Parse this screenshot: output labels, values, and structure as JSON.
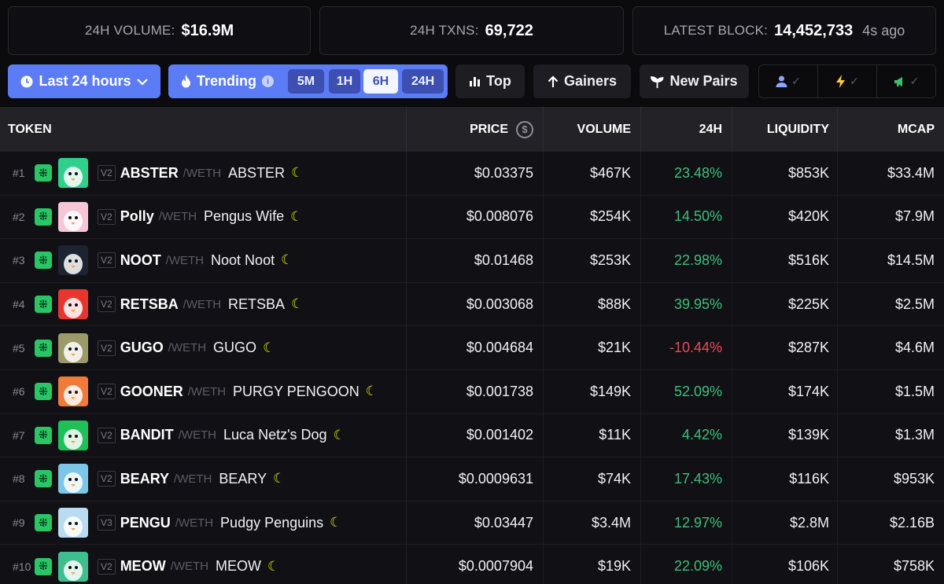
{
  "stats": {
    "volume_label": "24H VOLUME:",
    "volume_value": "$16.9M",
    "txns_label": "24H TXNS:",
    "txns_value": "69,722",
    "block_label": "LATEST BLOCK:",
    "block_value": "14,452,733",
    "block_age": "4s ago"
  },
  "toolbar": {
    "period_label": "Last 24 hours",
    "trending_label": "Trending",
    "timeframes": [
      "5M",
      "1H",
      "6H",
      "24H"
    ],
    "active_timeframe": "6H",
    "top_label": "Top",
    "gainers_label": "Gainers",
    "new_pairs_label": "New Pairs"
  },
  "table": {
    "headers": {
      "token": "TOKEN",
      "price": "PRICE",
      "volume": "VOLUME",
      "change": "24H",
      "liquidity": "LIQUIDITY",
      "mcap": "MCAP"
    },
    "quote_prefix": "/",
    "rows": [
      {
        "rank": "#1",
        "ver": "V2",
        "symbol": "ABSTER",
        "quote": "WETH",
        "name": "ABSTER",
        "price": "$0.03375",
        "volume": "$467K",
        "change": "23.48%",
        "dir": "pos",
        "liquidity": "$853K",
        "mcap": "$33.4M",
        "avatar_color": "#2fd08a"
      },
      {
        "rank": "#2",
        "ver": "V2",
        "symbol": "Polly",
        "quote": "WETH",
        "name": "Pengus Wife",
        "price": "$0.008076",
        "volume": "$254K",
        "change": "14.50%",
        "dir": "pos",
        "liquidity": "$420K",
        "mcap": "$7.9M",
        "avatar_color": "#f6c6d6"
      },
      {
        "rank": "#3",
        "ver": "V2",
        "symbol": "NOOT",
        "quote": "WETH",
        "name": "Noot Noot",
        "price": "$0.01468",
        "volume": "$253K",
        "change": "22.98%",
        "dir": "pos",
        "liquidity": "$516K",
        "mcap": "$14.5M",
        "avatar_color": "#1c2333"
      },
      {
        "rank": "#4",
        "ver": "V2",
        "symbol": "RETSBA",
        "quote": "WETH",
        "name": "RETSBA",
        "price": "$0.003068",
        "volume": "$88K",
        "change": "39.95%",
        "dir": "pos",
        "liquidity": "$225K",
        "mcap": "$2.5M",
        "avatar_color": "#e8352e"
      },
      {
        "rank": "#5",
        "ver": "V2",
        "symbol": "GUGO",
        "quote": "WETH",
        "name": "GUGO",
        "price": "$0.004684",
        "volume": "$21K",
        "change": "-10.44%",
        "dir": "neg",
        "liquidity": "$287K",
        "mcap": "$4.6M",
        "avatar_color": "#9c9a6a"
      },
      {
        "rank": "#6",
        "ver": "V2",
        "symbol": "GOONER",
        "quote": "WETH",
        "name": "PURGY PENGOON",
        "price": "$0.001738",
        "volume": "$149K",
        "change": "52.09%",
        "dir": "pos",
        "liquidity": "$174K",
        "mcap": "$1.5M",
        "avatar_color": "#f07a3a"
      },
      {
        "rank": "#7",
        "ver": "V2",
        "symbol": "BANDIT",
        "quote": "WETH",
        "name": "Luca Netz's Dog",
        "price": "$0.001402",
        "volume": "$11K",
        "change": "4.42%",
        "dir": "pos",
        "liquidity": "$139K",
        "mcap": "$1.3M",
        "avatar_color": "#1fbf5a"
      },
      {
        "rank": "#8",
        "ver": "V2",
        "symbol": "BEARY",
        "quote": "WETH",
        "name": "BEARY",
        "price": "$0.0009631",
        "volume": "$74K",
        "change": "17.43%",
        "dir": "pos",
        "liquidity": "$116K",
        "mcap": "$953K",
        "avatar_color": "#7cc6e8"
      },
      {
        "rank": "#9",
        "ver": "V3",
        "symbol": "PENGU",
        "quote": "WETH",
        "name": "Pudgy Penguins",
        "price": "$0.03447",
        "volume": "$3.4M",
        "change": "12.97%",
        "dir": "pos",
        "liquidity": "$2.8M",
        "mcap": "$2.16B",
        "avatar_color": "#b9dcf2"
      },
      {
        "rank": "#10",
        "ver": "V2",
        "symbol": "MEOW",
        "quote": "WETH",
        "name": "MEOW",
        "price": "$0.0007904",
        "volume": "$19K",
        "change": "22.09%",
        "dir": "pos",
        "liquidity": "$106K",
        "mcap": "$758K",
        "avatar_color": "#3fbf8f"
      }
    ]
  }
}
